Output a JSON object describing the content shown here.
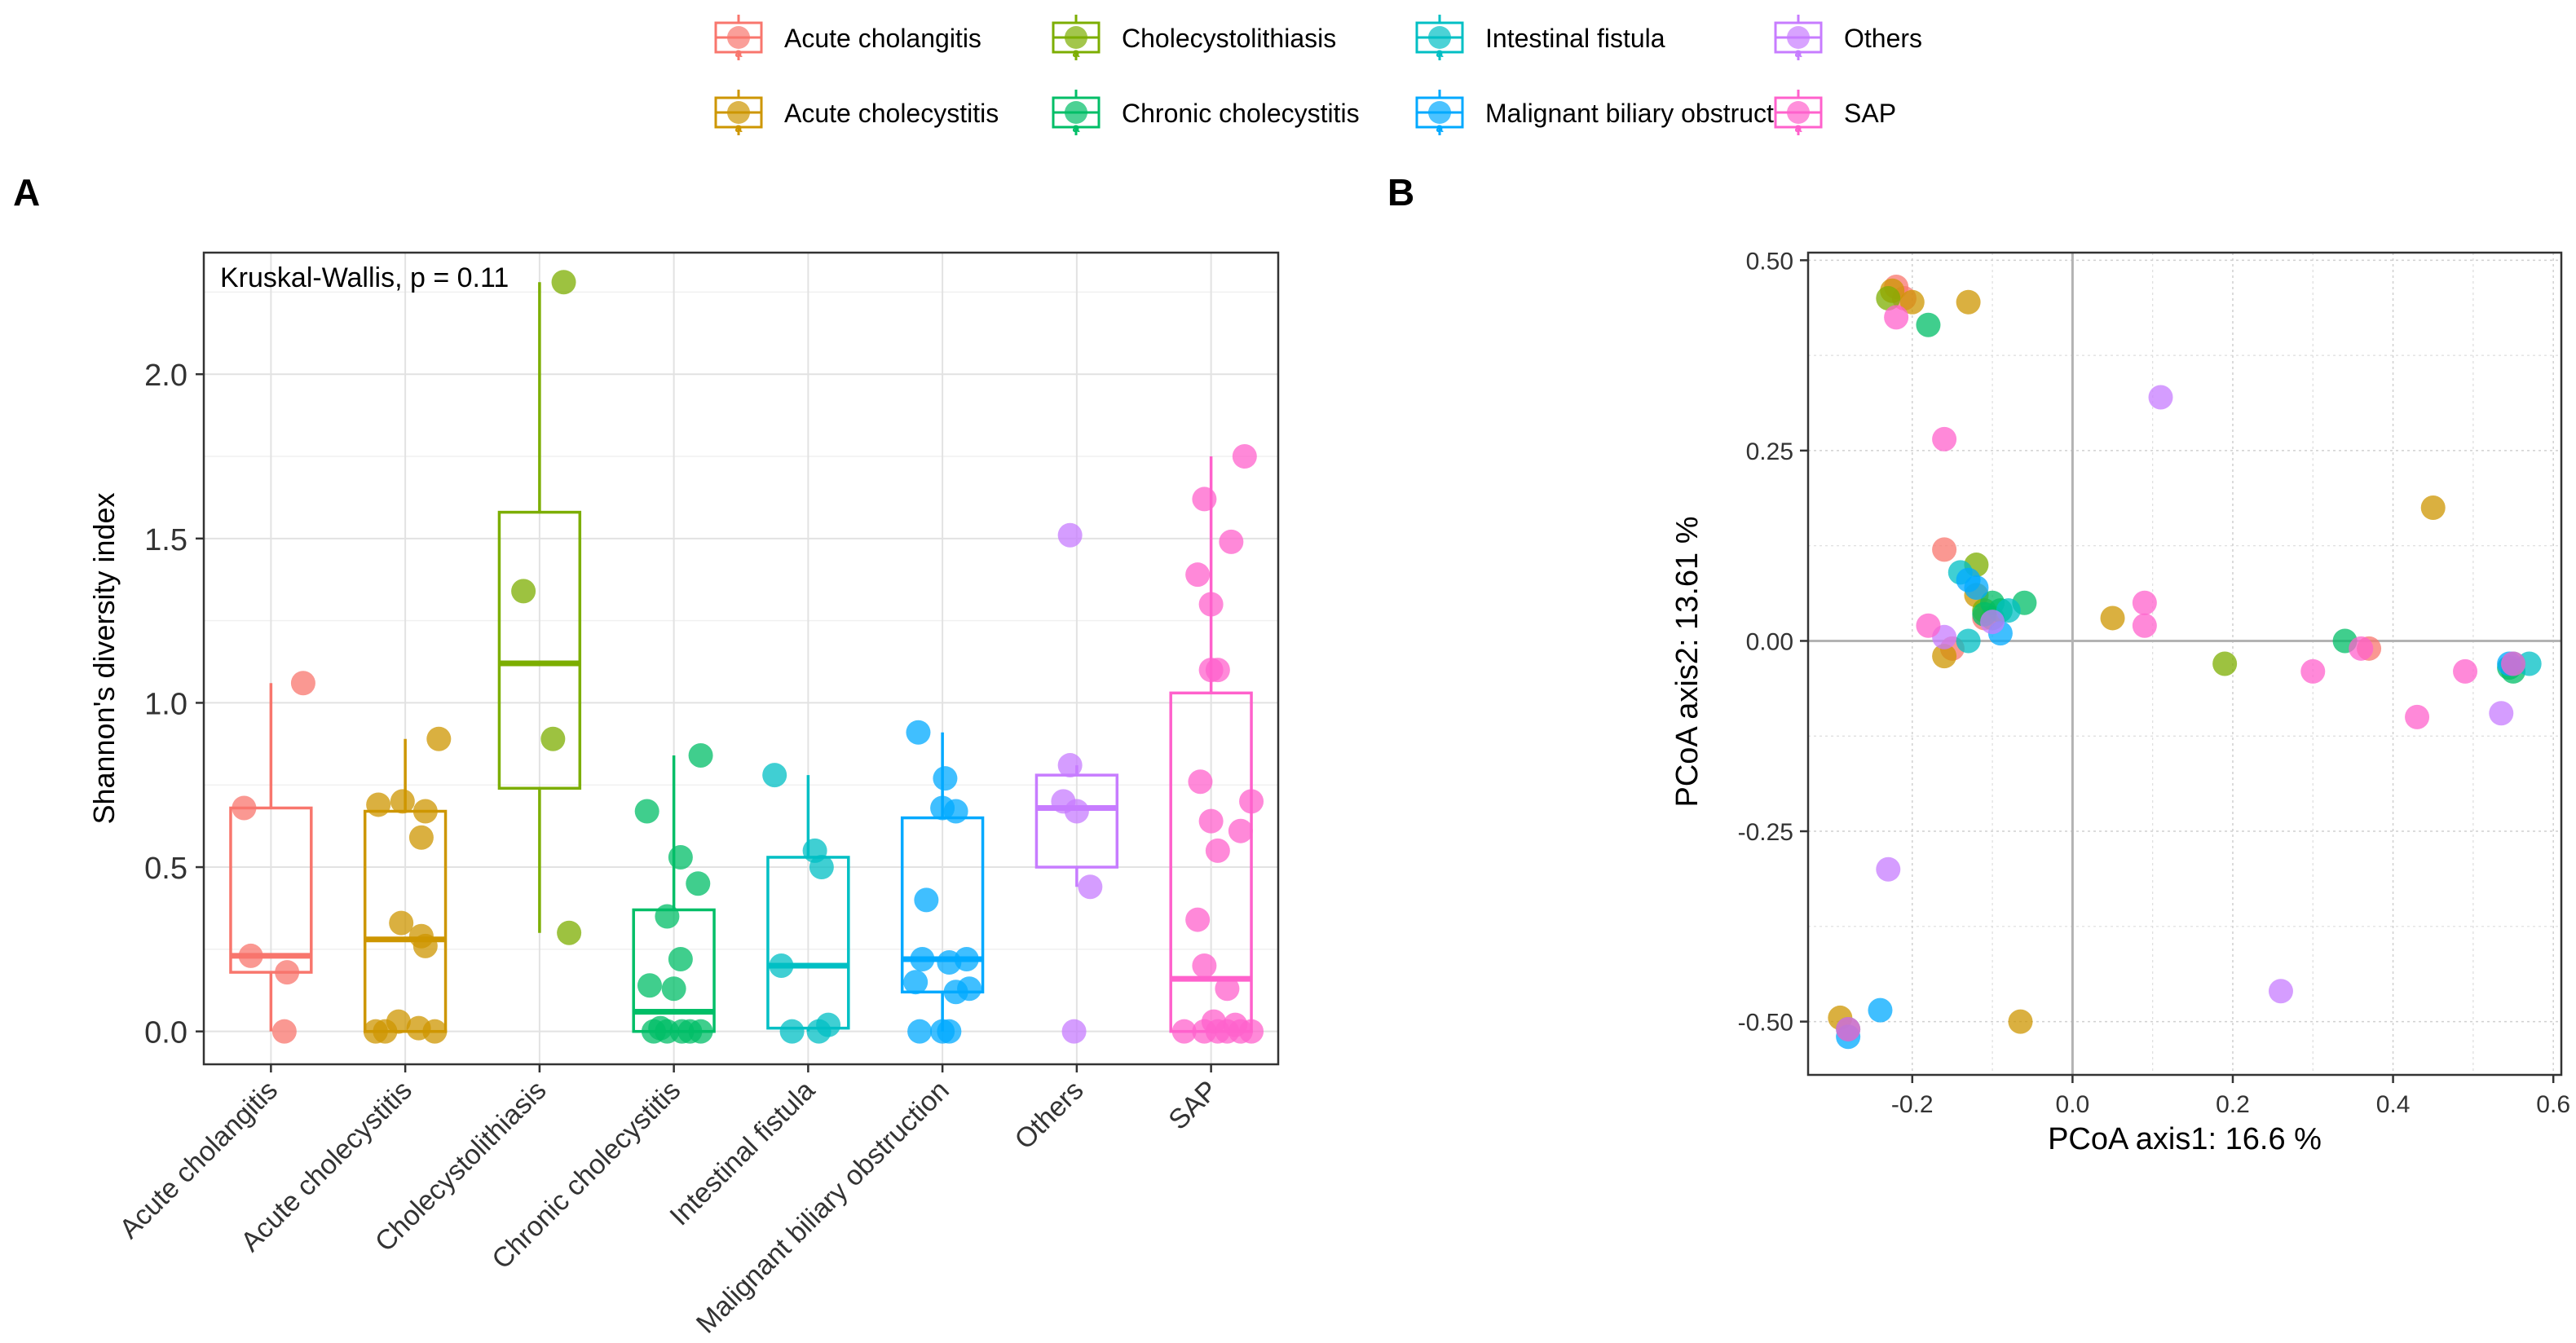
{
  "legend": {
    "items": [
      {
        "label": "Acute cholangitis",
        "color": "#F8766D"
      },
      {
        "label": "Cholecystolithiasis",
        "color": "#7CAE00"
      },
      {
        "label": "Intestinal fistula",
        "color": "#00BFC4"
      },
      {
        "label": "Others",
        "color": "#C77CFF"
      },
      {
        "label": "Acute cholecystitis",
        "color": "#CD9600"
      },
      {
        "label": "Chronic cholecystitis",
        "color": "#00BE67"
      },
      {
        "label": "Malignant biliary obstruction",
        "color": "#00A9FF"
      },
      {
        "label": "SAP",
        "color": "#FF61CC"
      }
    ],
    "key_glyph": "a"
  },
  "panel_labels": {
    "a": "A",
    "b": "B"
  },
  "chart_data": [
    {
      "type": "box",
      "panel": "A",
      "annotation": "Kruskal-Wallis, p = 0.11",
      "ylabel": "Shannon's diversity index",
      "xlabel": "",
      "ylim": [
        -0.1,
        2.37
      ],
      "yticks": [
        0.0,
        0.5,
        1.0,
        1.5,
        2.0
      ],
      "ytick_labels": [
        "0.0",
        "0.5",
        "1.0",
        "1.5",
        "2.0"
      ],
      "grid": true,
      "categories": [
        "Acute cholangitis",
        "Acute cholecystitis",
        "Cholecystolithiasis",
        "Chronic cholecystitis",
        "Intestinal fistula",
        "Malignant biliary obstruction",
        "Others",
        "SAP"
      ],
      "colors": [
        "#F8766D",
        "#CD9600",
        "#7CAE00",
        "#00BE67",
        "#00BFC4",
        "#00A9FF",
        "#C77CFF",
        "#FF61CC"
      ],
      "boxes": [
        {
          "q1": 0.18,
          "median": 0.23,
          "q3": 0.68,
          "whisker_low": 0.0,
          "whisker_high": 1.06
        },
        {
          "q1": 0.0,
          "median": 0.28,
          "q3": 0.67,
          "whisker_low": 0.0,
          "whisker_high": 0.89
        },
        {
          "q1": 0.74,
          "median": 1.12,
          "q3": 1.58,
          "whisker_low": 0.3,
          "whisker_high": 2.28
        },
        {
          "q1": 0.0,
          "median": 0.06,
          "q3": 0.37,
          "whisker_low": 0.0,
          "whisker_high": 0.84
        },
        {
          "q1": 0.01,
          "median": 0.2,
          "q3": 0.53,
          "whisker_low": 0.0,
          "whisker_high": 0.78
        },
        {
          "q1": 0.12,
          "median": 0.22,
          "q3": 0.65,
          "whisker_low": 0.0,
          "whisker_high": 0.91
        },
        {
          "q1": 0.5,
          "median": 0.68,
          "q3": 0.78,
          "whisker_low": 0.44,
          "whisker_high": 0.81
        },
        {
          "q1": 0.0,
          "median": 0.16,
          "q3": 1.03,
          "whisker_low": 0.0,
          "whisker_high": 1.75
        }
      ],
      "points": [
        [
          {
            "dx": -0.2,
            "y": 0.68
          },
          {
            "dx": 0.24,
            "y": 1.06
          },
          {
            "dx": -0.15,
            "y": 0.23
          },
          {
            "dx": 0.12,
            "y": 0.18
          },
          {
            "dx": 0.1,
            "y": 0.0
          }
        ],
        [
          {
            "dx": 0.25,
            "y": 0.89
          },
          {
            "dx": -0.2,
            "y": 0.69
          },
          {
            "dx": -0.02,
            "y": 0.7
          },
          {
            "dx": 0.15,
            "y": 0.67
          },
          {
            "dx": 0.12,
            "y": 0.59
          },
          {
            "dx": -0.03,
            "y": 0.33
          },
          {
            "dx": 0.12,
            "y": 0.29
          },
          {
            "dx": 0.15,
            "y": 0.26
          },
          {
            "dx": -0.05,
            "y": 0.03
          },
          {
            "dx": 0.1,
            "y": 0.01
          },
          {
            "dx": -0.22,
            "y": 0.0
          },
          {
            "dx": -0.15,
            "y": 0.0
          },
          {
            "dx": 0.22,
            "y": 0.0
          }
        ],
        [
          {
            "dx": 0.18,
            "y": 2.28
          },
          {
            "dx": -0.12,
            "y": 1.34
          },
          {
            "dx": 0.1,
            "y": 0.89
          },
          {
            "dx": 0.22,
            "y": 0.3
          }
        ],
        [
          {
            "dx": 0.2,
            "y": 0.84
          },
          {
            "dx": -0.2,
            "y": 0.67
          },
          {
            "dx": 0.05,
            "y": 0.53
          },
          {
            "dx": 0.18,
            "y": 0.45
          },
          {
            "dx": -0.05,
            "y": 0.35
          },
          {
            "dx": 0.05,
            "y": 0.22
          },
          {
            "dx": -0.18,
            "y": 0.14
          },
          {
            "dx": 0.0,
            "y": 0.13
          },
          {
            "dx": -0.1,
            "y": 0.01
          },
          {
            "dx": -0.15,
            "y": 0.0
          },
          {
            "dx": -0.05,
            "y": 0.0
          },
          {
            "dx": 0.06,
            "y": 0.0
          },
          {
            "dx": 0.12,
            "y": 0.0
          },
          {
            "dx": 0.2,
            "y": 0.0
          }
        ],
        [
          {
            "dx": -0.25,
            "y": 0.78
          },
          {
            "dx": 0.05,
            "y": 0.55
          },
          {
            "dx": 0.1,
            "y": 0.5
          },
          {
            "dx": -0.2,
            "y": 0.2
          },
          {
            "dx": 0.15,
            "y": 0.02
          },
          {
            "dx": -0.12,
            "y": 0.0
          },
          {
            "dx": 0.08,
            "y": 0.0
          }
        ],
        [
          {
            "dx": -0.18,
            "y": 0.91
          },
          {
            "dx": 0.02,
            "y": 0.77
          },
          {
            "dx": 0.0,
            "y": 0.68
          },
          {
            "dx": 0.1,
            "y": 0.67
          },
          {
            "dx": -0.12,
            "y": 0.4
          },
          {
            "dx": -0.15,
            "y": 0.22
          },
          {
            "dx": 0.05,
            "y": 0.21
          },
          {
            "dx": 0.18,
            "y": 0.22
          },
          {
            "dx": -0.2,
            "y": 0.15
          },
          {
            "dx": 0.1,
            "y": 0.12
          },
          {
            "dx": 0.2,
            "y": 0.13
          },
          {
            "dx": -0.17,
            "y": 0.0
          },
          {
            "dx": 0.0,
            "y": 0.0
          },
          {
            "dx": 0.05,
            "y": 0.0
          }
        ],
        [
          {
            "dx": -0.05,
            "y": 1.51
          },
          {
            "dx": -0.05,
            "y": 0.81
          },
          {
            "dx": -0.1,
            "y": 0.7
          },
          {
            "dx": 0.0,
            "y": 0.67
          },
          {
            "dx": 0.1,
            "y": 0.44
          },
          {
            "dx": -0.02,
            "y": 0.0
          }
        ],
        [
          {
            "dx": 0.25,
            "y": 1.75
          },
          {
            "dx": -0.05,
            "y": 1.62
          },
          {
            "dx": 0.15,
            "y": 1.49
          },
          {
            "dx": -0.1,
            "y": 1.39
          },
          {
            "dx": 0.0,
            "y": 1.3
          },
          {
            "dx": 0.0,
            "y": 1.1
          },
          {
            "dx": 0.05,
            "y": 1.1
          },
          {
            "dx": -0.08,
            "y": 0.76
          },
          {
            "dx": 0.3,
            "y": 0.7
          },
          {
            "dx": 0.0,
            "y": 0.64
          },
          {
            "dx": 0.22,
            "y": 0.61
          },
          {
            "dx": 0.05,
            "y": 0.55
          },
          {
            "dx": -0.1,
            "y": 0.34
          },
          {
            "dx": -0.05,
            "y": 0.2
          },
          {
            "dx": 0.12,
            "y": 0.13
          },
          {
            "dx": 0.02,
            "y": 0.03
          },
          {
            "dx": 0.18,
            "y": 0.02
          },
          {
            "dx": -0.2,
            "y": 0.0
          },
          {
            "dx": -0.05,
            "y": 0.0
          },
          {
            "dx": 0.05,
            "y": 0.0
          },
          {
            "dx": 0.12,
            "y": 0.0
          },
          {
            "dx": 0.22,
            "y": 0.0
          },
          {
            "dx": 0.3,
            "y": 0.0
          }
        ]
      ]
    },
    {
      "type": "scatter",
      "panel": "B",
      "xlabel": "PCoA axis1:  16.6 %",
      "ylabel": "PCoA axis2:  13.61 %",
      "xlim": [
        -0.33,
        0.61
      ],
      "ylim": [
        -0.57,
        0.51
      ],
      "xticks": [
        -0.2,
        0.0,
        0.2,
        0.4,
        0.6
      ],
      "xtick_labels": [
        "-0.2",
        "0.0",
        "0.2",
        "0.4",
        "0.6"
      ],
      "yticks": [
        -0.5,
        -0.25,
        0.0,
        0.25,
        0.5
      ],
      "ytick_labels": [
        "-0.50",
        "-0.25",
        "0.00",
        "0.25",
        "0.50"
      ],
      "grid": true,
      "reference_lines": {
        "x": 0,
        "y": 0
      },
      "series": [
        {
          "name": "Acute cholangitis",
          "color": "#F8766D",
          "points": [
            [
              -0.22,
              0.465
            ],
            [
              -0.21,
              0.45
            ],
            [
              -0.16,
              0.12
            ],
            [
              -0.11,
              0.03
            ],
            [
              -0.15,
              -0.01
            ],
            [
              0.37,
              -0.01
            ]
          ]
        },
        {
          "name": "Acute cholecystitis",
          "color": "#CD9600",
          "points": [
            [
              -0.225,
              0.46
            ],
            [
              -0.2,
              0.445
            ],
            [
              -0.13,
              0.445
            ],
            [
              0.45,
              0.175
            ],
            [
              -0.16,
              -0.02
            ],
            [
              0.05,
              0.03
            ],
            [
              -0.29,
              -0.495
            ],
            [
              -0.065,
              -0.5
            ],
            [
              -0.12,
              0.06
            ]
          ]
        },
        {
          "name": "Cholecystolithiasis",
          "color": "#7CAE00",
          "points": [
            [
              -0.12,
              0.1
            ],
            [
              -0.11,
              0.04
            ],
            [
              -0.1,
              0.03
            ],
            [
              0.19,
              -0.03
            ],
            [
              -0.23,
              0.45
            ]
          ]
        },
        {
          "name": "Chronic cholecystitis",
          "color": "#00BE67",
          "points": [
            [
              -0.18,
              0.415
            ],
            [
              -0.06,
              0.05
            ],
            [
              -0.09,
              0.04
            ],
            [
              0.34,
              0.0
            ],
            [
              0.55,
              -0.04
            ],
            [
              0.545,
              -0.035
            ],
            [
              -0.1,
              0.05
            ],
            [
              -0.11,
              0.035
            ]
          ]
        },
        {
          "name": "Intestinal fistula",
          "color": "#00BFC4",
          "points": [
            [
              -0.14,
              0.09
            ],
            [
              -0.13,
              0.0
            ],
            [
              -0.08,
              0.04
            ],
            [
              0.57,
              -0.03
            ],
            [
              0.55,
              -0.03
            ],
            [
              -0.28,
              -0.51
            ]
          ]
        },
        {
          "name": "Malignant biliary obstruction",
          "color": "#00A9FF",
          "points": [
            [
              -0.13,
              0.08
            ],
            [
              -0.12,
              0.07
            ],
            [
              -0.09,
              0.01
            ],
            [
              -0.24,
              -0.485
            ],
            [
              -0.28,
              -0.52
            ],
            [
              0.545,
              -0.03
            ]
          ]
        },
        {
          "name": "Others",
          "color": "#C77CFF",
          "points": [
            [
              0.11,
              0.32
            ],
            [
              -0.23,
              -0.3
            ],
            [
              0.26,
              -0.46
            ],
            [
              0.535,
              -0.095
            ],
            [
              -0.16,
              0.005
            ],
            [
              -0.1,
              0.025
            ]
          ]
        },
        {
          "name": "SAP",
          "color": "#FF61CC",
          "points": [
            [
              -0.22,
              0.425
            ],
            [
              -0.16,
              0.265
            ],
            [
              -0.18,
              0.02
            ],
            [
              0.09,
              0.05
            ],
            [
              0.09,
              0.02
            ],
            [
              0.3,
              -0.04
            ],
            [
              0.36,
              -0.01
            ],
            [
              0.43,
              -0.1
            ],
            [
              0.49,
              -0.04
            ],
            [
              0.55,
              -0.03
            ],
            [
              -0.28,
              -0.51
            ]
          ]
        }
      ]
    }
  ]
}
